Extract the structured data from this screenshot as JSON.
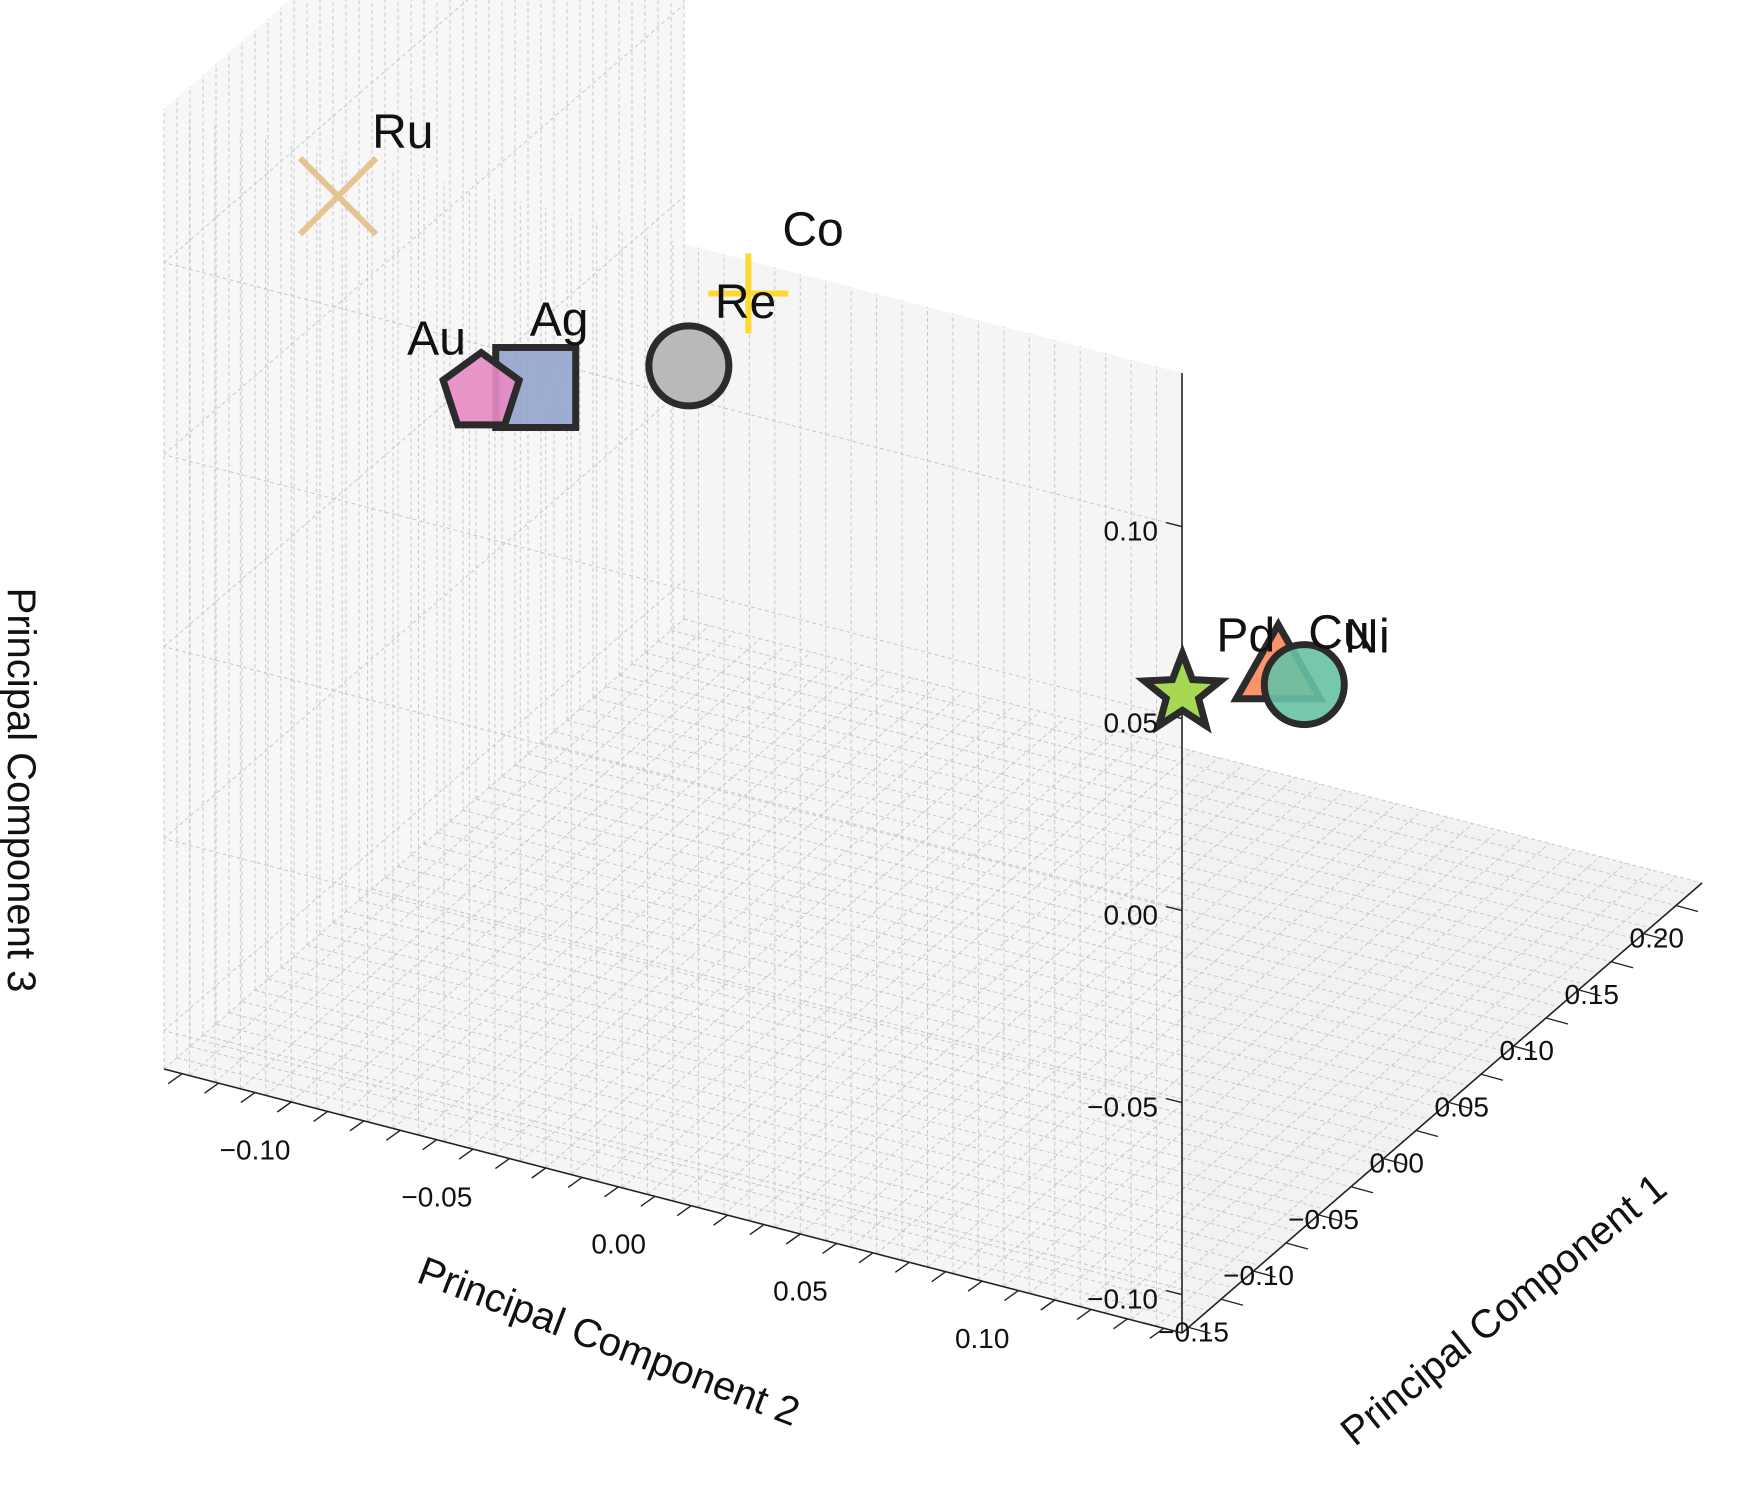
{
  "chart_data": {
    "type": "scatter",
    "projection": "3d",
    "grid": true,
    "xlabel": "Principal Component 1",
    "ylabel": "Principal Component 2",
    "zlabel": "Principal Component 3",
    "xlim": [
      -0.18,
      0.22
    ],
    "ylim": [
      -0.13,
      0.15
    ],
    "zlim": [
      -0.11,
      0.14
    ],
    "x_ticks": [
      "−0.15",
      "−0.10",
      "−0.05",
      "0.00",
      "0.05",
      "0.10",
      "0.15",
      "0.20"
    ],
    "y_ticks": [
      "−0.10",
      "−0.05",
      "0.00",
      "0.05",
      "0.10"
    ],
    "z_ticks": [
      "−0.10",
      "−0.05",
      "0.00",
      "0.05",
      "0.10"
    ],
    "points": [
      {
        "label": "Ru",
        "x": -0.13,
        "y": -0.1,
        "z": 0.11,
        "marker": "x",
        "color": "#e5c494"
      },
      {
        "label": "Co",
        "x": -0.15,
        "y": 0.02,
        "z": 0.12,
        "marker": "plus",
        "color": "#ffd92f"
      },
      {
        "label": "Re",
        "x": 0.0,
        "y": -0.05,
        "z": 0.04,
        "marker": "circle",
        "color": "#b3b3b3"
      },
      {
        "label": "Ag",
        "x": 0.05,
        "y": -0.11,
        "z": 0.005,
        "marker": "square",
        "color": "#8da0cb"
      },
      {
        "label": "Au",
        "x": 0.05,
        "y": -0.125,
        "z": 0.0,
        "marker": "pentagon",
        "color": "#e78ac3"
      },
      {
        "label": "Cu",
        "x": -0.05,
        "y": 0.13,
        "z": 0.02,
        "marker": "triangle",
        "color": "#fc8d62"
      },
      {
        "label": "Ni",
        "x": -0.03,
        "y": 0.13,
        "z": 0.01,
        "marker": "circle",
        "color": "#66c2a5"
      },
      {
        "label": "Pd",
        "x": 0.1,
        "y": 0.05,
        "z": -0.05,
        "marker": "star",
        "color": "#a6d854"
      }
    ]
  }
}
